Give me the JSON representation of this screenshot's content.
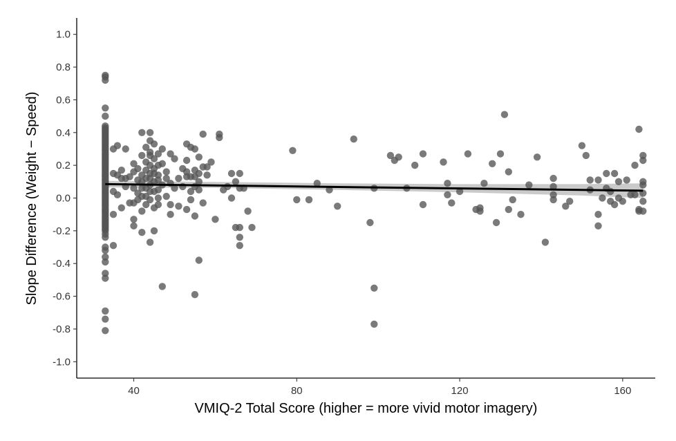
{
  "chart_data": {
    "type": "scatter",
    "xlabel": "VMIQ-2 Total Score (higher = more vivid motor imagery)",
    "ylabel": "Slope Difference (Weight − Speed)",
    "xlim": [
      26,
      168
    ],
    "ylim": [
      -1.1,
      1.1
    ],
    "x_ticks": [
      40,
      80,
      120,
      160
    ],
    "y_ticks": [
      -1.0,
      -0.8,
      -0.6,
      -0.4,
      -0.2,
      0.0,
      0.2,
      0.4,
      0.6,
      0.8,
      1.0
    ],
    "x_tick_labels": [
      "40",
      "80",
      "120",
      "160"
    ],
    "y_tick_labels": [
      "-1.0",
      "-0.8",
      "-0.6",
      "-0.4",
      "-0.2",
      "0.0",
      "0.2",
      "0.4",
      "0.6",
      "0.8",
      "1.0"
    ],
    "grid": false,
    "colors": {
      "points": "#555555",
      "fit_line": "#000000",
      "ribbon": "#bdbdbd"
    },
    "trend_line": {
      "x": [
        33,
        165
      ],
      "y": [
        0.085,
        0.045
      ]
    },
    "confidence_band": {
      "x": [
        33,
        60,
        90,
        120,
        150,
        165
      ],
      "lower": [
        0.065,
        0.062,
        0.05,
        0.035,
        0.015,
        0.0
      ],
      "upper": [
        0.105,
        0.098,
        0.09,
        0.085,
        0.085,
        0.09
      ]
    },
    "series": [
      {
        "points": [
          [
            33,
            0.75
          ],
          [
            33,
            0.74
          ],
          [
            33,
            0.72
          ],
          [
            33,
            0.55
          ],
          [
            33,
            0.5
          ],
          [
            33,
            0.44
          ],
          [
            33,
            0.43
          ],
          [
            33,
            0.42
          ],
          [
            33,
            0.41
          ],
          [
            33,
            0.4
          ],
          [
            33,
            0.39
          ],
          [
            33,
            0.38
          ],
          [
            33,
            0.37
          ],
          [
            33,
            0.36
          ],
          [
            33,
            0.35
          ],
          [
            33,
            0.34
          ],
          [
            33,
            0.33
          ],
          [
            33,
            0.32
          ],
          [
            33,
            0.31
          ],
          [
            33,
            0.3
          ],
          [
            33,
            0.29
          ],
          [
            33,
            0.28
          ],
          [
            33,
            0.27
          ],
          [
            33,
            0.26
          ],
          [
            33,
            0.25
          ],
          [
            33,
            0.24
          ],
          [
            33,
            0.23
          ],
          [
            33,
            0.22
          ],
          [
            33,
            0.21
          ],
          [
            33,
            0.2
          ],
          [
            33,
            0.19
          ],
          [
            33,
            0.18
          ],
          [
            33,
            0.17
          ],
          [
            33,
            0.16
          ],
          [
            33,
            0.15
          ],
          [
            33,
            0.14
          ],
          [
            33,
            0.13
          ],
          [
            33,
            0.12
          ],
          [
            33,
            0.11
          ],
          [
            33,
            0.1
          ],
          [
            33,
            0.09
          ],
          [
            33,
            0.08
          ],
          [
            33,
            0.07
          ],
          [
            33,
            0.06
          ],
          [
            33,
            0.05
          ],
          [
            33,
            0.04
          ],
          [
            33,
            0.03
          ],
          [
            33,
            0.02
          ],
          [
            33,
            0.01
          ],
          [
            33,
            0.0
          ],
          [
            33,
            -0.01
          ],
          [
            33,
            -0.02
          ],
          [
            33,
            -0.03
          ],
          [
            33,
            -0.04
          ],
          [
            33,
            -0.05
          ],
          [
            33,
            -0.06
          ],
          [
            33,
            -0.07
          ],
          [
            33,
            -0.08
          ],
          [
            33,
            -0.09
          ],
          [
            33,
            -0.1
          ],
          [
            33,
            -0.11
          ],
          [
            33,
            -0.12
          ],
          [
            33,
            -0.13
          ],
          [
            33,
            -0.14
          ],
          [
            33,
            -0.15
          ],
          [
            33,
            -0.16
          ],
          [
            33,
            -0.17
          ],
          [
            33,
            -0.18
          ],
          [
            33,
            -0.19
          ],
          [
            33,
            -0.2
          ],
          [
            33,
            -0.22
          ],
          [
            33,
            -0.24
          ],
          [
            33,
            -0.3
          ],
          [
            33,
            -0.32
          ],
          [
            33,
            -0.36
          ],
          [
            33,
            -0.39
          ],
          [
            33,
            -0.46
          ],
          [
            33,
            -0.49
          ],
          [
            33,
            -0.69
          ],
          [
            33,
            -0.74
          ],
          [
            33,
            -0.81
          ],
          [
            35,
            0.3
          ],
          [
            35,
            0.15
          ],
          [
            35,
            0.04
          ],
          [
            35,
            -0.1
          ],
          [
            35,
            -0.29
          ],
          [
            36,
            0.32
          ],
          [
            36,
            0.14
          ],
          [
            36,
            0.02
          ],
          [
            37,
            0.17
          ],
          [
            37,
            0.12
          ],
          [
            37,
            -0.06
          ],
          [
            38,
            0.3
          ],
          [
            38,
            0.12
          ],
          [
            38,
            0.07
          ],
          [
            39,
            0.13
          ],
          [
            39,
            -0.03
          ],
          [
            40,
            0.21
          ],
          [
            40,
            0.16
          ],
          [
            40,
            0.06
          ],
          [
            40,
            -0.03
          ],
          [
            40,
            -0.13
          ],
          [
            40,
            -0.17
          ],
          [
            41,
            0.18
          ],
          [
            41,
            0.11
          ],
          [
            41,
            0.03
          ],
          [
            41,
            -0.01
          ],
          [
            42,
            0.4
          ],
          [
            42,
            0.26
          ],
          [
            42,
            0.14
          ],
          [
            42,
            0.1
          ],
          [
            42,
            0.06
          ],
          [
            42,
            0.01
          ],
          [
            42,
            -0.08
          ],
          [
            42,
            -0.21
          ],
          [
            43,
            0.31
          ],
          [
            43,
            0.22
          ],
          [
            43,
            0.17
          ],
          [
            43,
            0.12
          ],
          [
            43,
            0.06
          ],
          [
            43,
            0.01
          ],
          [
            43,
            -0.04
          ],
          [
            44,
            0.4
          ],
          [
            44,
            0.35
          ],
          [
            44,
            0.28
          ],
          [
            44,
            0.26
          ],
          [
            44,
            0.2
          ],
          [
            44,
            0.15
          ],
          [
            44,
            0.12
          ],
          [
            44,
            0.08
          ],
          [
            44,
            0.04
          ],
          [
            44,
            -0.01
          ],
          [
            44,
            -0.27
          ],
          [
            45,
            0.33
          ],
          [
            45,
            0.24
          ],
          [
            45,
            0.18
          ],
          [
            45,
            0.15
          ],
          [
            45,
            0.1
          ],
          [
            45,
            0.04
          ],
          [
            45,
            -0.06
          ],
          [
            45,
            -0.2
          ],
          [
            46,
            0.27
          ],
          [
            46,
            0.2
          ],
          [
            46,
            0.14
          ],
          [
            46,
            0.11
          ],
          [
            46,
            0.05
          ],
          [
            46,
            0.0
          ],
          [
            46,
            -0.04
          ],
          [
            47,
            0.3
          ],
          [
            47,
            0.21
          ],
          [
            47,
            0.08
          ],
          [
            47,
            -0.54
          ],
          [
            48,
            0.16
          ],
          [
            48,
            0.12
          ],
          [
            48,
            0.01
          ],
          [
            49,
            0.27
          ],
          [
            49,
            0.09
          ],
          [
            49,
            -0.04
          ],
          [
            49,
            -0.1
          ],
          [
            50,
            0.24
          ],
          [
            50,
            0.06
          ],
          [
            51,
            0.12
          ],
          [
            51,
            -0.05
          ],
          [
            52,
            0.18
          ],
          [
            52,
            0.07
          ],
          [
            53,
            0.33
          ],
          [
            53,
            0.23
          ],
          [
            53,
            0.16
          ],
          [
            53,
            0.13
          ],
          [
            53,
            -0.07
          ],
          [
            54,
            0.31
          ],
          [
            54,
            0.13
          ],
          [
            54,
            0.04
          ],
          [
            54,
            -0.01
          ],
          [
            55,
            0.3
          ],
          [
            55,
            0.17
          ],
          [
            55,
            0.13
          ],
          [
            55,
            0.07
          ],
          [
            55,
            -0.11
          ],
          [
            55,
            -0.59
          ],
          [
            56,
            0.25
          ],
          [
            56,
            0.15
          ],
          [
            56,
            0.1
          ],
          [
            56,
            0.05
          ],
          [
            56,
            -0.38
          ],
          [
            57,
            0.39
          ],
          [
            57,
            0.19
          ],
          [
            57,
            -0.03
          ],
          [
            58,
            0.19
          ],
          [
            58,
            0.14
          ],
          [
            59,
            0.22
          ],
          [
            60,
            -0.13
          ],
          [
            61,
            0.39
          ],
          [
            61,
            0.37
          ],
          [
            62,
            0.05
          ],
          [
            63,
            0.07
          ],
          [
            64,
            0.15
          ],
          [
            64,
            0.0
          ],
          [
            65,
            0.1
          ],
          [
            65,
            -0.18
          ],
          [
            66,
            0.15
          ],
          [
            66,
            0.06
          ],
          [
            66,
            -0.18
          ],
          [
            66,
            -0.24
          ],
          [
            66,
            -0.29
          ],
          [
            67,
            0.06
          ],
          [
            68,
            -0.08
          ],
          [
            69,
            -0.18
          ],
          [
            79,
            0.29
          ],
          [
            80,
            -0.01
          ],
          [
            83,
            -0.01
          ],
          [
            85,
            0.09
          ],
          [
            88,
            0.05
          ],
          [
            90,
            -0.05
          ],
          [
            94,
            0.36
          ],
          [
            98,
            -0.15
          ],
          [
            99,
            0.06
          ],
          [
            99,
            -0.55
          ],
          [
            99,
            -0.77
          ],
          [
            103,
            0.26
          ],
          [
            104,
            0.23
          ],
          [
            105,
            0.25
          ],
          [
            107,
            0.06
          ],
          [
            109,
            0.2
          ],
          [
            111,
            0.27
          ],
          [
            111,
            -0.04
          ],
          [
            116,
            0.22
          ],
          [
            117,
            0.09
          ],
          [
            117,
            0.02
          ],
          [
            118,
            -0.03
          ],
          [
            120,
            0.04
          ],
          [
            122,
            0.27
          ],
          [
            124,
            -0.07
          ],
          [
            125,
            -0.06
          ],
          [
            125,
            -0.08
          ],
          [
            126,
            0.09
          ],
          [
            128,
            0.21
          ],
          [
            129,
            -0.15
          ],
          [
            130,
            0.27
          ],
          [
            131,
            0.51
          ],
          [
            132,
            0.16
          ],
          [
            132,
            -0.07
          ],
          [
            133,
            -0.01
          ],
          [
            135,
            -0.1
          ],
          [
            137,
            0.08
          ],
          [
            139,
            0.25
          ],
          [
            141,
            -0.27
          ],
          [
            143,
            0.12
          ],
          [
            143,
            0.07
          ],
          [
            143,
            0.02
          ],
          [
            143,
            -0.01
          ],
          [
            146,
            -0.05
          ],
          [
            147,
            -0.02
          ],
          [
            150,
            0.32
          ],
          [
            151,
            0.26
          ],
          [
            152,
            0.11
          ],
          [
            152,
            0.05
          ],
          [
            154,
            0.11
          ],
          [
            154,
            -0.1
          ],
          [
            154,
            -0.17
          ],
          [
            155,
            0.0
          ],
          [
            156,
            0.15
          ],
          [
            156,
            0.06
          ],
          [
            157,
            0.04
          ],
          [
            157,
            -0.02
          ],
          [
            158,
            0.15
          ],
          [
            158,
            -0.04
          ],
          [
            159,
            0.1
          ],
          [
            159,
            0.0
          ],
          [
            160,
            -0.02
          ],
          [
            161,
            0.11
          ],
          [
            162,
            0.02
          ],
          [
            163,
            0.2
          ],
          [
            163,
            0.02
          ],
          [
            164,
            0.42
          ],
          [
            164,
            -0.07
          ],
          [
            164,
            -0.08
          ],
          [
            165,
            0.26
          ],
          [
            165,
            0.23
          ],
          [
            165,
            0.1
          ],
          [
            165,
            0.08
          ],
          [
            165,
            0.03
          ],
          [
            165,
            -0.02
          ],
          [
            165,
            -0.08
          ]
        ]
      }
    ]
  }
}
